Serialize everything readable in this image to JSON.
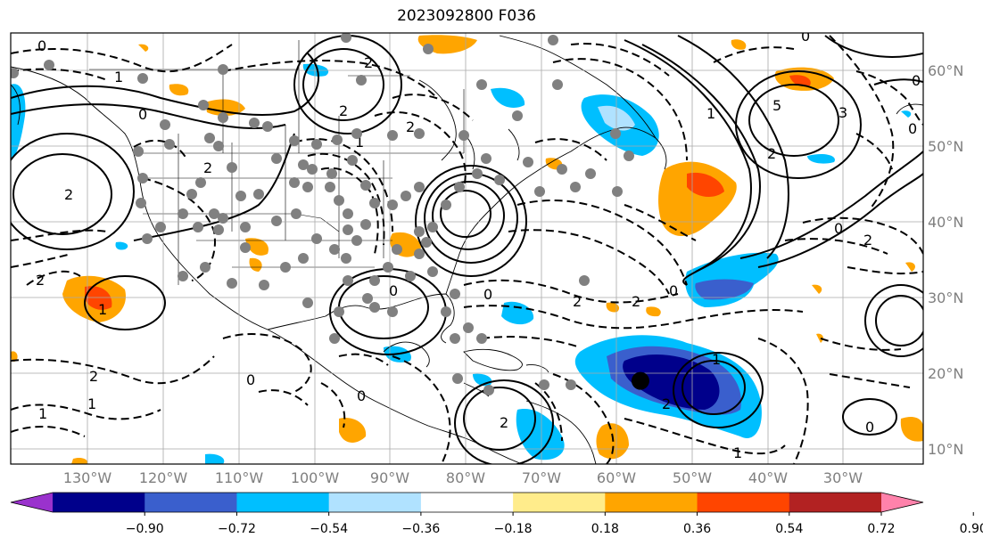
{
  "title": "2023092800 F036",
  "map": {
    "projection": "cylindrical",
    "lon_range": [
      -141,
      -20
    ],
    "lat_range": [
      8,
      65
    ],
    "lon_ticks": [
      "130°W",
      "120°W",
      "110°W",
      "100°W",
      "90°W",
      "80°W",
      "70°W",
      "60°W",
      "50°W",
      "40°W",
      "30°W"
    ],
    "lat_ticks": [
      "10°N",
      "20°N",
      "30°N",
      "40°N",
      "50°N",
      "60°N"
    ],
    "grid": true,
    "contour_labels": [
      "0",
      "1",
      "2",
      "0",
      "2",
      "2",
      "2",
      "2",
      "1",
      "0",
      "5",
      "3",
      "2",
      "0",
      "1",
      "2",
      "0",
      "0",
      "2",
      "2",
      "0",
      "0",
      "1",
      "2",
      "0",
      "1",
      "2",
      "0",
      "1",
      "2",
      "2",
      "0",
      "1",
      "1",
      "0"
    ]
  },
  "colorbar": {
    "extend": "both",
    "colors": [
      "#9a32cd",
      "#00008b",
      "#3a5fcd",
      "#00bfff",
      "#b0e2ff",
      "#ffffff",
      "#ffec8b",
      "#ffa500",
      "#ff4500",
      "#b22222",
      "#ff82ab"
    ],
    "tick_labels": [
      "−0.90",
      "−0.72",
      "−0.54",
      "−0.36",
      "−0.18",
      "0.18",
      "0.36",
      "0.54",
      "0.72",
      "0.90"
    ]
  },
  "markers": {
    "gray_color": "#808080",
    "black_color": "#000000",
    "black_point": {
      "lon": -57.5,
      "lat": 19
    }
  }
}
